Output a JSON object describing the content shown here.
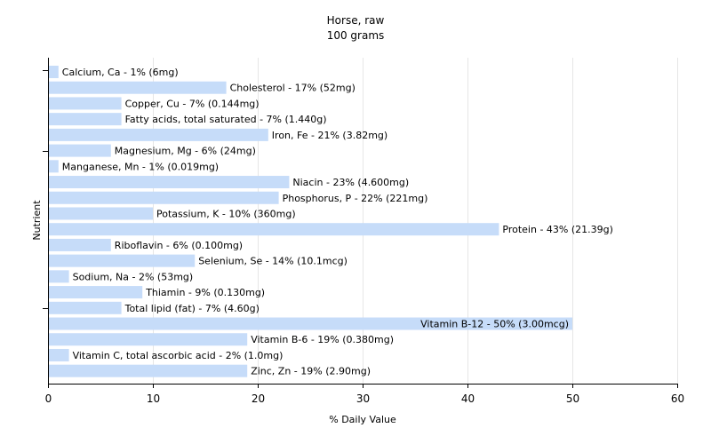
{
  "chart_data": {
    "type": "bar",
    "orientation": "horizontal",
    "title": "Horse, raw",
    "subtitle": "100 grams",
    "xlabel": "% Daily Value",
    "ylabel": "Nutrient",
    "xlim": [
      0,
      60
    ],
    "xticks": [
      0,
      10,
      20,
      30,
      40,
      50,
      60
    ],
    "grid": true,
    "bar_color": "#c6dcf9",
    "categories": [
      "Calcium, Ca - 1% (6mg)",
      "Cholesterol - 17% (52mg)",
      "Copper, Cu - 7% (0.144mg)",
      "Fatty acids, total saturated - 7% (1.440g)",
      "Iron, Fe - 21% (3.82mg)",
      "Magnesium, Mg - 6% (24mg)",
      "Manganese, Mn - 1% (0.019mg)",
      "Niacin - 23% (4.600mg)",
      "Phosphorus, P - 22% (221mg)",
      "Potassium, K - 10% (360mg)",
      "Protein - 43% (21.39g)",
      "Riboflavin - 6% (0.100mg)",
      "Selenium, Se - 14% (10.1mcg)",
      "Sodium, Na - 2% (53mg)",
      "Thiamin - 9% (0.130mg)",
      "Total lipid (fat) - 7% (4.60g)",
      "Vitamin B-12 - 50% (3.00mcg)",
      "Vitamin B-6 - 19% (0.380mg)",
      "Vitamin C, total ascorbic acid - 2% (1.0mg)",
      "Zinc, Zn - 19% (2.90mg)"
    ],
    "values": [
      1,
      17,
      7,
      7,
      21,
      6,
      1,
      23,
      22,
      10,
      43,
      6,
      14,
      2,
      9,
      7,
      50,
      19,
      2,
      19
    ]
  }
}
